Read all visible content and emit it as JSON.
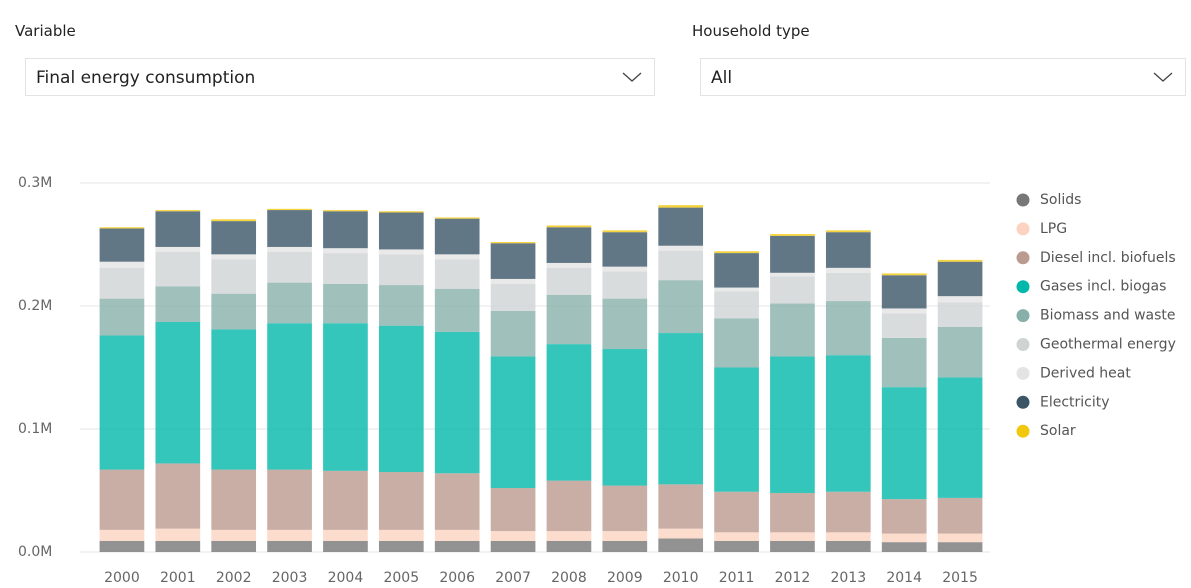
{
  "filters": [
    {
      "label": "Variable",
      "value": "Final energy consumption"
    },
    {
      "label": "Household type",
      "value": "All"
    }
  ],
  "chart_data": {
    "type": "stacked_bar",
    "categories": [
      "2000",
      "2001",
      "2002",
      "2003",
      "2004",
      "2005",
      "2006",
      "2007",
      "2008",
      "2009",
      "2010",
      "2011",
      "2012",
      "2013",
      "2014",
      "2015"
    ],
    "ylim": [
      0,
      300000
    ],
    "yticks": [
      {
        "value": 0,
        "label": "0.0M"
      },
      {
        "value": 100000,
        "label": "0.1M"
      },
      {
        "value": 200000,
        "label": "0.2M"
      },
      {
        "value": 300000,
        "label": "0.3M"
      }
    ],
    "grid": true,
    "legend": "right",
    "series": [
      {
        "name": "Solids",
        "color": "#777777",
        "values": [
          9000,
          9000,
          9000,
          9000,
          9000,
          9000,
          9000,
          9000,
          9000,
          9000,
          11000,
          9000,
          9000,
          9000,
          8000,
          8000
        ]
      },
      {
        "name": "LPG",
        "color": "#fbd3c0",
        "values": [
          9000,
          10000,
          9000,
          9000,
          9000,
          9000,
          9000,
          8000,
          8000,
          8000,
          8000,
          7000,
          7000,
          7000,
          7000,
          7000
        ]
      },
      {
        "name": "Diesel incl. biofuels",
        "color": "#bb9a8f",
        "values": [
          49000,
          53000,
          49000,
          49000,
          48000,
          47000,
          46000,
          35000,
          41000,
          37000,
          36000,
          33000,
          32000,
          33000,
          28000,
          29000
        ]
      },
      {
        "name": "Gases incl. biogas",
        "color": "#01b8aa",
        "values": [
          109000,
          115000,
          114000,
          119000,
          120000,
          119000,
          115000,
          107000,
          111000,
          111000,
          123000,
          101000,
          111000,
          111000,
          91000,
          98000
        ]
      },
      {
        "name": "Biomass and waste",
        "color": "#88b0ab",
        "values": [
          30000,
          29000,
          29000,
          33000,
          32000,
          33000,
          35000,
          37000,
          40000,
          41000,
          43000,
          40000,
          43000,
          44000,
          40000,
          41000
        ]
      },
      {
        "name": "Geothermal energy",
        "color": "#cfd3d3",
        "values": [
          25000,
          28000,
          28000,
          25000,
          25000,
          25000,
          24000,
          22000,
          22000,
          22000,
          24000,
          22000,
          22000,
          23000,
          20000,
          20000
        ]
      },
      {
        "name": "Derived heat",
        "color": "#e4e4e4",
        "values": [
          5000,
          4000,
          4000,
          4000,
          4000,
          4000,
          4000,
          4000,
          4000,
          4000,
          4000,
          3000,
          3000,
          4000,
          4000,
          5000
        ]
      },
      {
        "name": "Electricity",
        "color": "#3b5566",
        "values": [
          27000,
          29000,
          27000,
          30000,
          30000,
          30000,
          29000,
          29000,
          29000,
          28000,
          31000,
          28000,
          30000,
          29000,
          27000,
          28000
        ]
      },
      {
        "name": "Solar",
        "color": "#f2c80f",
        "values": [
          1000,
          1000,
          1500,
          1000,
          1000,
          1000,
          1000,
          1000,
          1500,
          1500,
          2000,
          1500,
          1500,
          1500,
          1500,
          1500
        ]
      }
    ]
  }
}
